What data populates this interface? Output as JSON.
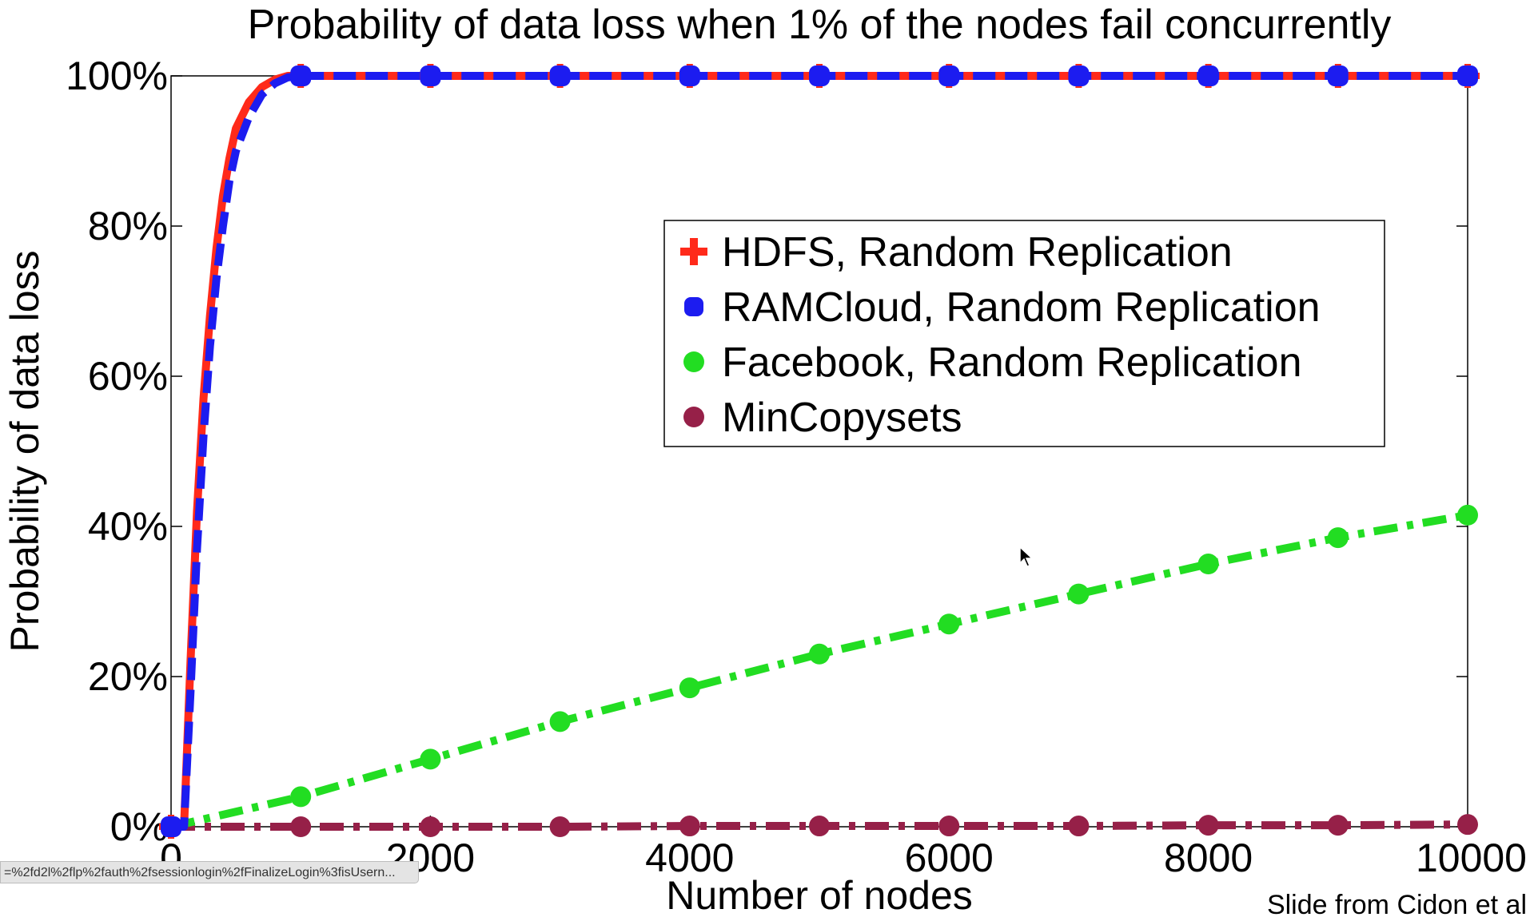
{
  "chart_data": {
    "type": "line",
    "title": "Probability of data loss when 1% of the nodes fail concurrently",
    "xlabel": "Number of nodes",
    "ylabel": "Probability of data loss",
    "xlim": [
      0,
      10000
    ],
    "ylim": [
      0,
      100
    ],
    "x_ticks": [
      "0",
      "2000",
      "4000",
      "6000",
      "8000",
      "10000"
    ],
    "y_ticks": [
      "0%",
      "20%",
      "40%",
      "60%",
      "80%",
      "100%"
    ],
    "legend_position": "upper-middle-right",
    "series": [
      {
        "name": "HDFS, Random Replication",
        "color": "#ff2a1a",
        "marker": "plus",
        "line_style": "solid",
        "x": [
          0,
          100,
          150,
          200,
          250,
          300,
          350,
          400,
          450,
          500,
          600,
          700,
          800,
          900,
          1000,
          2000,
          3000,
          4000,
          5000,
          6000,
          7000,
          8000,
          9000,
          10000
        ],
        "y": [
          0,
          0,
          22,
          42,
          57,
          68,
          77,
          84,
          89,
          93,
          96.5,
          98.5,
          99.5,
          100,
          100,
          100,
          100,
          100,
          100,
          100,
          100,
          100,
          100,
          100
        ]
      },
      {
        "name": "RAMCloud, Random Replication",
        "color": "#1c1cf0",
        "marker": "square",
        "line_style": "dashed",
        "x": [
          0,
          100,
          150,
          200,
          250,
          300,
          350,
          400,
          450,
          500,
          600,
          700,
          800,
          900,
          1000,
          2000,
          3000,
          4000,
          5000,
          6000,
          7000,
          8000,
          9000,
          10000
        ],
        "y": [
          0,
          0,
          18,
          37,
          52,
          64,
          73,
          80,
          86,
          90,
          94.5,
          97.5,
          99,
          99.8,
          100,
          100,
          100,
          100,
          100,
          100,
          100,
          100,
          100,
          100
        ]
      },
      {
        "name": "Facebook, Random Replication",
        "color": "#22dd22",
        "marker": "circle",
        "line_style": "dash-dot",
        "x": [
          0,
          1000,
          2000,
          3000,
          4000,
          5000,
          6000,
          7000,
          8000,
          9000,
          10000
        ],
        "y": [
          0,
          4,
          9,
          14,
          18.5,
          23,
          27,
          31,
          35,
          38.5,
          41.5
        ]
      },
      {
        "name": "MinCopysets",
        "color": "#962048",
        "marker": "circle",
        "line_style": "dash-dot",
        "x": [
          0,
          1000,
          2000,
          3000,
          4000,
          5000,
          6000,
          7000,
          8000,
          9000,
          10000
        ],
        "y": [
          0,
          0,
          0,
          0,
          0.1,
          0.1,
          0.1,
          0.1,
          0.2,
          0.2,
          0.3
        ]
      }
    ],
    "credit": "Slide from Cidon et al"
  },
  "status_bar": {
    "url_text": "=%2fd2l%2flp%2fauth%2fsessionlogin%2fFinalizeLogin%3fisUsern..."
  }
}
